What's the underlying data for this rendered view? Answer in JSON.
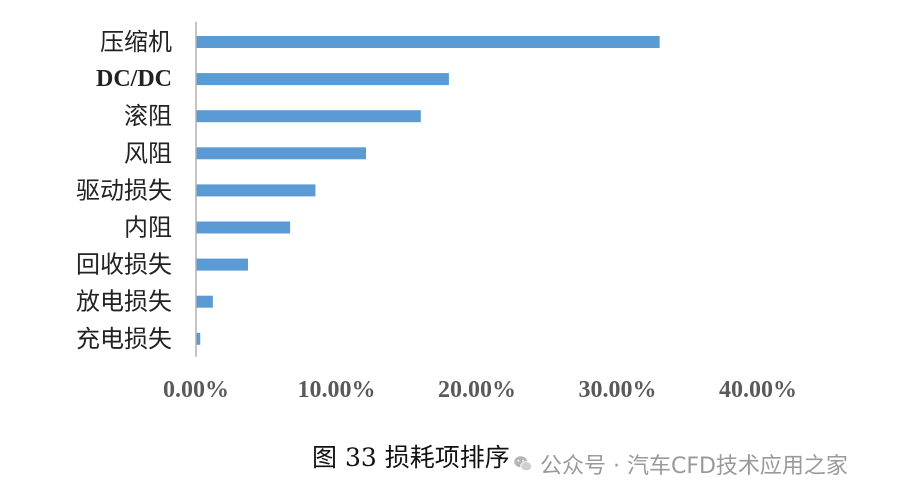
{
  "chart_data": {
    "type": "bar",
    "orientation": "horizontal",
    "categories": [
      "压缩机",
      "DC/DC",
      "滚阻",
      "风阻",
      "驱动损失",
      "内阻",
      "回收损失",
      "放电损失",
      "充电损失"
    ],
    "values": [
      33.0,
      18.0,
      16.0,
      12.1,
      8.5,
      6.7,
      3.7,
      1.2,
      0.3
    ],
    "xlim": [
      0,
      40
    ],
    "xticks": [
      "0.00%",
      "10.00%",
      "20.00%",
      "30.00%",
      "40.00%"
    ],
    "grid": false,
    "bar_color": "#5b9bd5",
    "axis_color": "#b0b0b0"
  },
  "caption": "图 33  损耗项排序",
  "watermark": {
    "icon": "wechat-icon",
    "text": "公众号 · 汽车CFD技术应用之家"
  }
}
